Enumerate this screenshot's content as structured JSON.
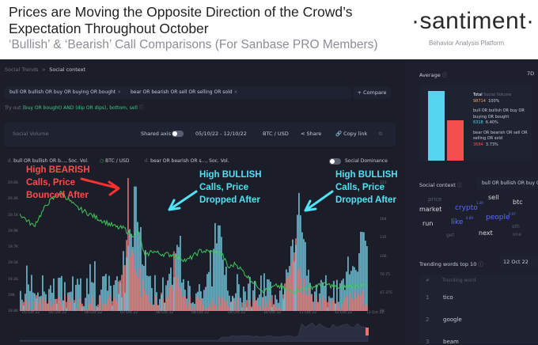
{
  "header": {
    "title": "Prices are Moving the Opposite Direction of the Crowd’s Expectation Throughout October",
    "subtitle": "‘Bullish’ & ‘Bearish’ Call Comparisons (For Sanbase PRO Members)",
    "logo": "·santiment·",
    "logo_sub": "Behavior Analysis Platform"
  },
  "breadcrumb": {
    "parent": "Social Trends",
    "sep": ">",
    "current": "Social context"
  },
  "query": {
    "chips": [
      "bull OR bullish OR buy OR buying OR bought",
      "bear OR bearish OR sell OR selling OR sold"
    ],
    "remove": "×",
    "compare": "+ Compare"
  },
  "tryout": {
    "prefix": "Try out",
    "suggestion": "(buy OR bought) AND (dip OR dips), bottom, sell",
    "info": "ⓘ"
  },
  "panel": {
    "title": "Social Volume",
    "shared_axis": "Shared axis",
    "date_range": "05/10/22 - 12/10/22",
    "pair": "BTC / USD",
    "share": "Share",
    "copy_link": "Copy link",
    "settings": "⚙"
  },
  "legend": {
    "series1": "bull OR bullish OR b..., Soc. Vol.",
    "series2": "BTC / USD",
    "series3": "bear OR bearish OR s..., Soc. Vol.",
    "dominance": "Social Dominance"
  },
  "annotations": {
    "bearish": [
      "High BEARISH",
      "Calls, Price",
      "Bounced After"
    ],
    "bullish1": [
      "High BULLISH",
      "Calls, Price",
      "Dropped After"
    ],
    "bullish2": [
      "High BULLISH",
      "Calls, Price",
      "Dropped After"
    ]
  },
  "colors": {
    "bull": "#6fc7d9",
    "bear": "#f07070",
    "price": "#3ec95a",
    "red_ann": "#ff4b4b",
    "cyan_ann": "#4fe3f5"
  },
  "chart_data": {
    "type": "bar",
    "left_axis": {
      "label": "BTC / USD",
      "ticks": [
        "20.6K",
        "20.4K",
        "20.1K",
        "19.9K",
        "19.7K",
        "19.5K",
        "19.2K",
        "19K",
        "18.8K"
      ],
      "range": [
        18800,
        20650
      ]
    },
    "right_axis": {
      "label": "Social Volume",
      "ticks": [
        "223",
        "194",
        "164",
        "135",
        "106",
        "76.75",
        "47.375",
        "18"
      ],
      "range": [
        18,
        223
      ]
    },
    "x_ticks": [
      "05 Oct 22",
      "05 Oct 22",
      "06 Oct 22",
      "07 Oct 22",
      "08 Oct 22",
      "08 Oct 22",
      "09 Oct 22",
      "10 Oct 22",
      "11 Oct 22",
      "12 Oct 22",
      "12 Oct 22"
    ],
    "price_keypoints": [
      [
        0,
        20150
      ],
      [
        0.04,
        19980
      ],
      [
        0.08,
        20300
      ],
      [
        0.12,
        20450
      ],
      [
        0.16,
        20250
      ],
      [
        0.2,
        20150
      ],
      [
        0.24,
        20050
      ],
      [
        0.28,
        19960
      ],
      [
        0.3,
        19950
      ],
      [
        0.32,
        19850
      ],
      [
        0.34,
        19900
      ],
      [
        0.36,
        19550
      ],
      [
        0.38,
        19640
      ],
      [
        0.4,
        19600
      ],
      [
        0.44,
        19580
      ],
      [
        0.48,
        19500
      ],
      [
        0.52,
        19640
      ],
      [
        0.58,
        19600
      ],
      [
        0.6,
        19400
      ],
      [
        0.62,
        19460
      ],
      [
        0.66,
        19250
      ],
      [
        0.7,
        19080
      ],
      [
        0.74,
        19150
      ],
      [
        0.78,
        19070
      ],
      [
        0.82,
        19120
      ],
      [
        0.88,
        19170
      ],
      [
        0.92,
        19120
      ],
      [
        0.96,
        19160
      ],
      [
        1,
        19150
      ]
    ],
    "bull_peaks": [
      [
        0.33,
        210
      ],
      [
        0.45,
        120
      ],
      [
        0.57,
        150
      ],
      [
        0.8,
        200
      ],
      [
        0.98,
        140
      ]
    ],
    "bear_peaks": [
      [
        0.31,
        223
      ],
      [
        0.44,
        110
      ],
      [
        0.79,
        130
      ]
    ]
  },
  "sidebar": {
    "average": "Average",
    "average_info": "ⓘ",
    "period": "7D",
    "total_label": "Total",
    "total_label2": "Social Volume",
    "total_value": "98714",
    "total_pct": "100%",
    "bull_label": "bull OR bullish OR buy OR buying OR bought",
    "bull_value": "6318",
    "bull_pct": "6.40%",
    "bear_label": "bear OR bearish OR sell OR selling OR sold",
    "bear_value": "3684",
    "bear_pct": "3.73%",
    "bull_share": 6.4,
    "bear_share": 3.73,
    "social_context": "Social context",
    "context_select": "bull OR bullish OR buy O",
    "words": [
      {
        "t": "price",
        "c": "#555a68"
      },
      {
        "t": "sell",
        "c": "#d8dbe3"
      },
      {
        "t": "btc",
        "c": "#d8dbe3"
      },
      {
        "t": "market",
        "c": "#d8dbe3"
      },
      {
        "t": "crypto",
        "c": "#5b6df5"
      },
      {
        "t": "1.00",
        "c": "#5b6df5"
      },
      {
        "t": "people",
        "c": "#5b6df5"
      },
      {
        "t": "0.97",
        "c": "#5b6df5"
      },
      {
        "t": "run",
        "c": "#d8dbe3"
      },
      {
        "t": "like",
        "c": "#5b6df5"
      },
      {
        "t": "0.89",
        "c": "#5b6df5"
      },
      {
        "t": "eth",
        "c": "#555a68"
      },
      {
        "t": "next",
        "c": "#d8dbe3"
      },
      {
        "t": "get",
        "c": "#555a68"
      },
      {
        "t": "one",
        "c": "#555a68"
      }
    ],
    "trending_title": "Trending words top 10",
    "trending_date": "12 Oct 22",
    "col_num": "#",
    "col_word": "Trending word",
    "trending": [
      {
        "n": "1",
        "w": "tico"
      },
      {
        "n": "2",
        "w": "google"
      },
      {
        "n": "3",
        "w": "beam"
      }
    ]
  }
}
